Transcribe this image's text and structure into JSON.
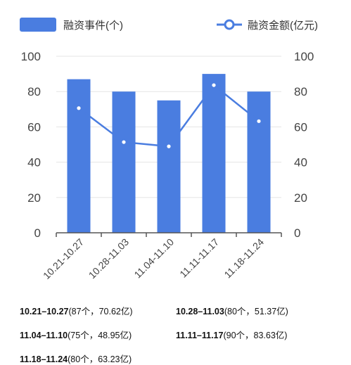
{
  "legend": {
    "bar_label": "融资事件(个)",
    "line_label": "融资金额(亿元)"
  },
  "colors": {
    "bar": "#4a7de0",
    "line": "#4a7de0",
    "grid": "#e5e5e5",
    "axis": "#555555"
  },
  "chart_data": {
    "type": "bar",
    "categories": [
      "10.21-10.27",
      "10.28-11.03",
      "11.04-11.10",
      "11.11-11.17",
      "11.18-11.24"
    ],
    "series": [
      {
        "name": "融资事件(个)",
        "type": "bar",
        "axis": "left",
        "values": [
          87,
          80,
          75,
          90,
          80
        ]
      },
      {
        "name": "融资金额(亿元)",
        "type": "line",
        "axis": "right",
        "values": [
          70.62,
          51.37,
          48.95,
          83.63,
          63.23
        ]
      }
    ],
    "ylim": [
      0,
      100
    ],
    "yticks": [
      0,
      20,
      40,
      60,
      80,
      100
    ],
    "y2lim": [
      0,
      100
    ],
    "y2ticks": [
      0,
      20,
      40,
      60,
      80,
      100
    ],
    "grid": true,
    "legend_position": "top"
  },
  "notes": [
    {
      "range": "10.21–10.27",
      "detail": "(87个，70.62亿)"
    },
    {
      "range": "10.28–11.03",
      "detail": "(80个，51.37亿)"
    },
    {
      "range": "11.04–11.10",
      "detail": "(75个，48.95亿)"
    },
    {
      "range": "11.11–11.17",
      "detail": "(90个，83.63亿)"
    },
    {
      "range": "11.18–11.24",
      "detail": "(80个，63.23亿)"
    }
  ]
}
